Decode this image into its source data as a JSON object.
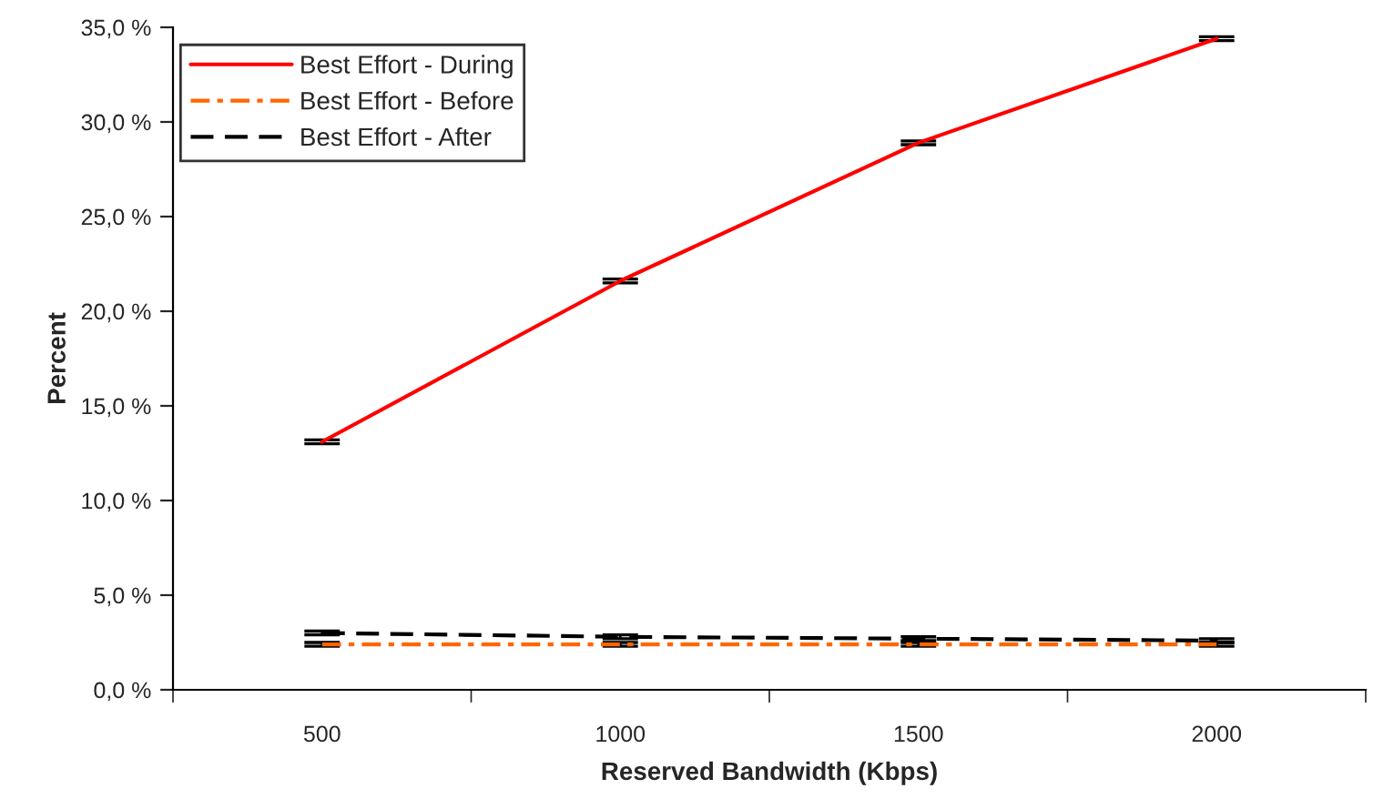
{
  "chart_data": {
    "type": "line",
    "xlabel": "Reserved Bandwidth (Kbps)",
    "ylabel": "Percent",
    "categories": [
      "500",
      "1000",
      "1500",
      "2000"
    ],
    "series": [
      {
        "name": "Best Effort - During",
        "color": "#ff0000",
        "line_style": "solid",
        "values": [
          13.1,
          21.6,
          28.9,
          34.4
        ],
        "errors": [
          0.1,
          0.1,
          0.1,
          0.1
        ]
      },
      {
        "name": "Best Effort - Before",
        "color": "#ff6600",
        "line_style": "dashdot",
        "values": [
          2.4,
          2.4,
          2.4,
          2.4
        ],
        "errors": [
          0.1,
          0.1,
          0.1,
          0.1
        ]
      },
      {
        "name": "Best Effort - After",
        "color": "#000000",
        "line_style": "dashed",
        "values": [
          3.0,
          2.8,
          2.7,
          2.6
        ],
        "errors": [
          0.1,
          0.1,
          0.1,
          0.1
        ]
      }
    ],
    "ylim": [
      0,
      35
    ],
    "yticks": [
      {
        "value": 0,
        "label": "0,0 %"
      },
      {
        "value": 5,
        "label": "5,0 %"
      },
      {
        "value": 10,
        "label": "10,0 %"
      },
      {
        "value": 15,
        "label": "15,0 %"
      },
      {
        "value": 20,
        "label": "20,0 %"
      },
      {
        "value": 25,
        "label": "25,0 %"
      },
      {
        "value": 30,
        "label": "30,0 %"
      },
      {
        "value": 35,
        "label": "35,0 %"
      }
    ],
    "grid": false,
    "legend": "top left",
    "marker": "none"
  }
}
